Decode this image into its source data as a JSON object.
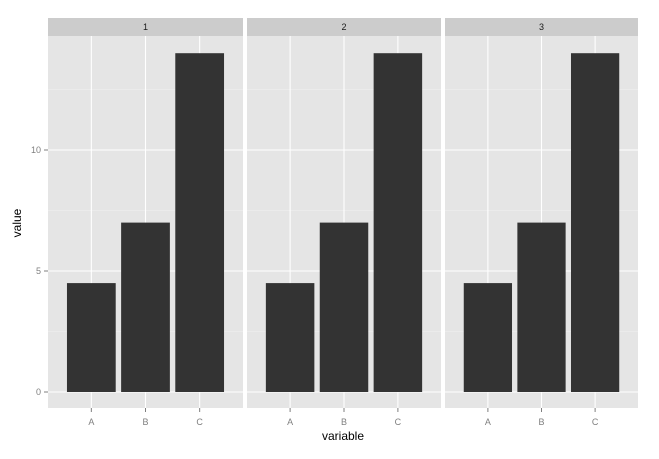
{
  "chart_data": {
    "type": "bar",
    "xlabel": "variable",
    "ylabel": "value",
    "ylim": [
      0,
      14.7
    ],
    "y_ticks": [
      0,
      5,
      10
    ],
    "y_tick_labels": [
      "0",
      "5",
      "10"
    ],
    "grid": true,
    "facets": [
      {
        "label": "1",
        "categories": [
          "A",
          "B",
          "C"
        ],
        "values": [
          4.5,
          7,
          14
        ]
      },
      {
        "label": "2",
        "categories": [
          "A",
          "B",
          "C"
        ],
        "values": [
          4.5,
          7,
          14
        ]
      },
      {
        "label": "3",
        "categories": [
          "A",
          "B",
          "C"
        ],
        "values": [
          4.5,
          7,
          14
        ]
      }
    ],
    "colors": {
      "bar": "#333333",
      "panel_background": "#e5e5e5",
      "strip_background": "#cccccc",
      "grid_major": "#ffffff",
      "grid_minor": "#f2f2f2"
    }
  }
}
